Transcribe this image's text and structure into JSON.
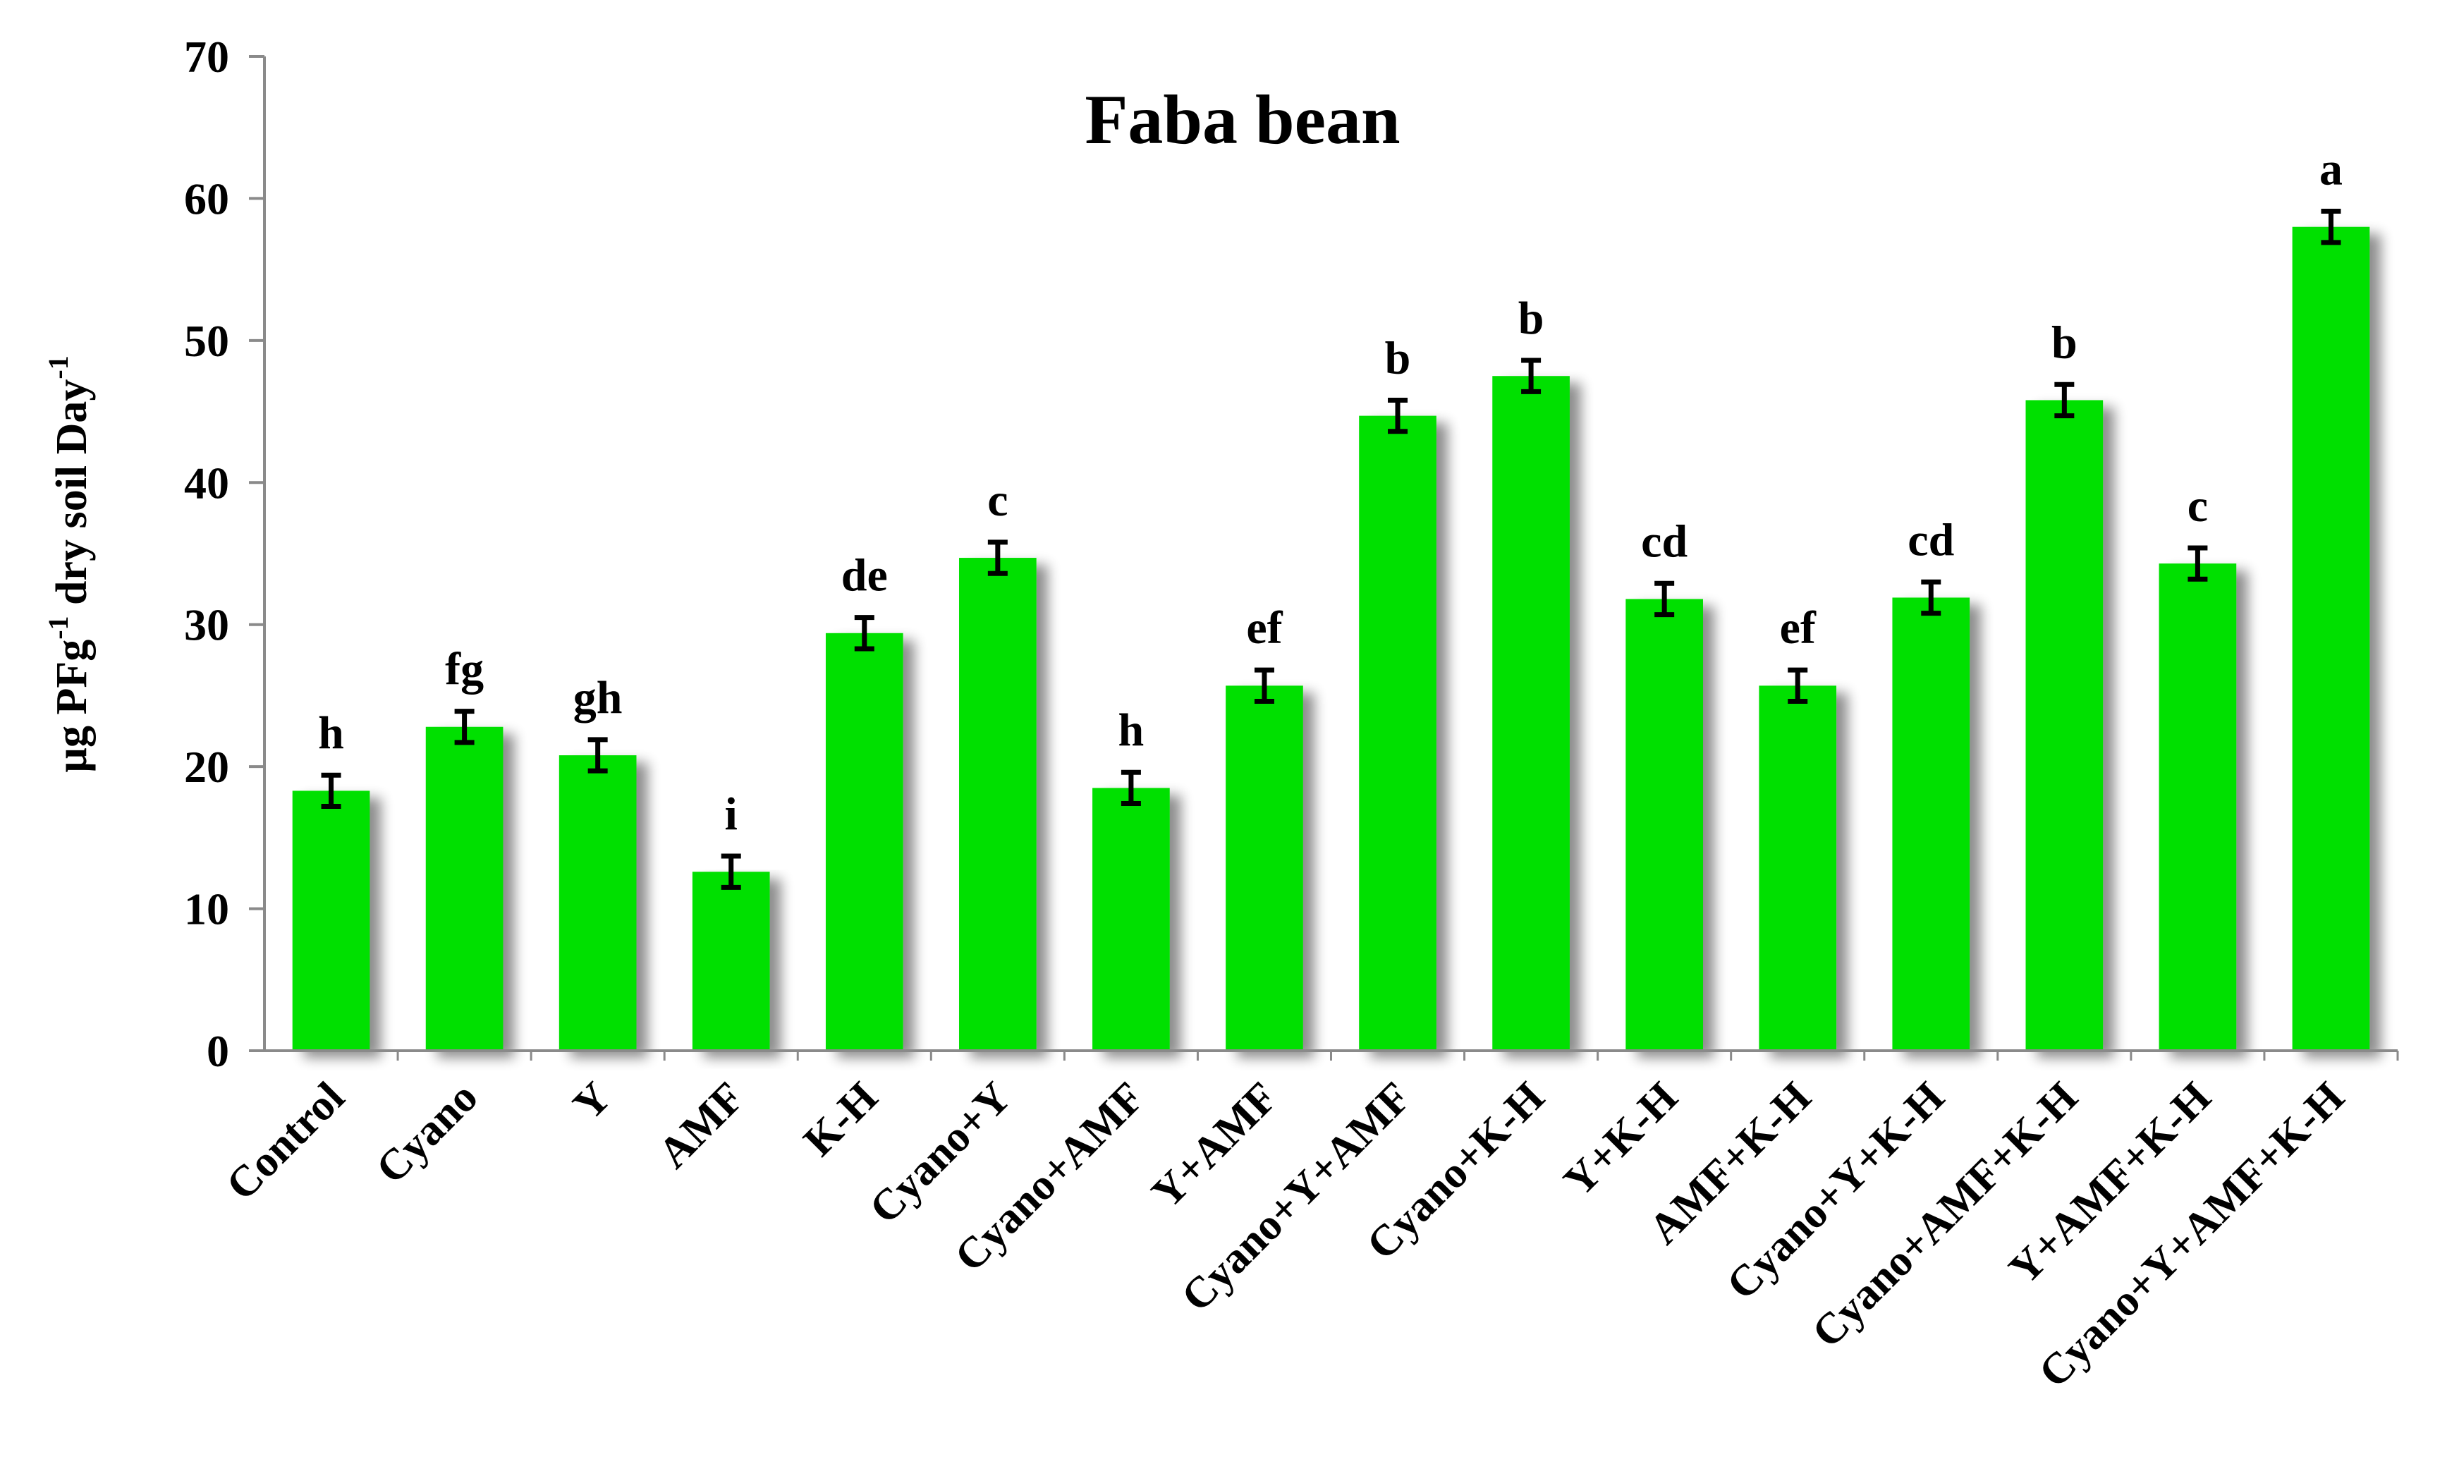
{
  "chart_data": {
    "type": "bar",
    "title": "Faba bean",
    "ylabel_main": "µg PFg",
    "ylabel_sup1": "-1",
    "ylabel_mid": " dry soil Day",
    "ylabel_sup2": "-1",
    "ylim": [
      0,
      70
    ],
    "yticks": [
      "0",
      "10",
      "20",
      "30",
      "40",
      "50",
      "60",
      "70"
    ],
    "grid": false,
    "bar_color": "#00e000",
    "categories": [
      "Control",
      "Cyano",
      "Y",
      "AMF",
      "K-H",
      "Cyano+Y",
      "Cyano+AMF",
      "Y+AMF",
      "Cyano+Y+AMF",
      "Cyano+K-H",
      "Y+K-H",
      "AMF+K-H",
      "Cyano+Y+K-H",
      "Cyano+AMF+K-H",
      "Y+AMF+K-H",
      "Cyano+Y+AMF+K-H"
    ],
    "values": [
      18.3,
      22.8,
      20.8,
      12.6,
      29.4,
      34.7,
      18.5,
      25.7,
      44.7,
      47.5,
      31.8,
      25.7,
      31.9,
      45.8,
      34.3,
      58.0
    ],
    "errors": [
      1.1,
      1.1,
      1.1,
      1.1,
      1.1,
      1.1,
      1.1,
      1.1,
      1.1,
      1.1,
      1.1,
      1.1,
      1.1,
      1.1,
      1.1,
      1.1
    ],
    "significance": [
      "h",
      "fg",
      "gh",
      "i",
      "de",
      "c",
      "h",
      "ef",
      "b",
      "b",
      "cd",
      "ef",
      "cd",
      "b",
      "c",
      "a"
    ]
  }
}
